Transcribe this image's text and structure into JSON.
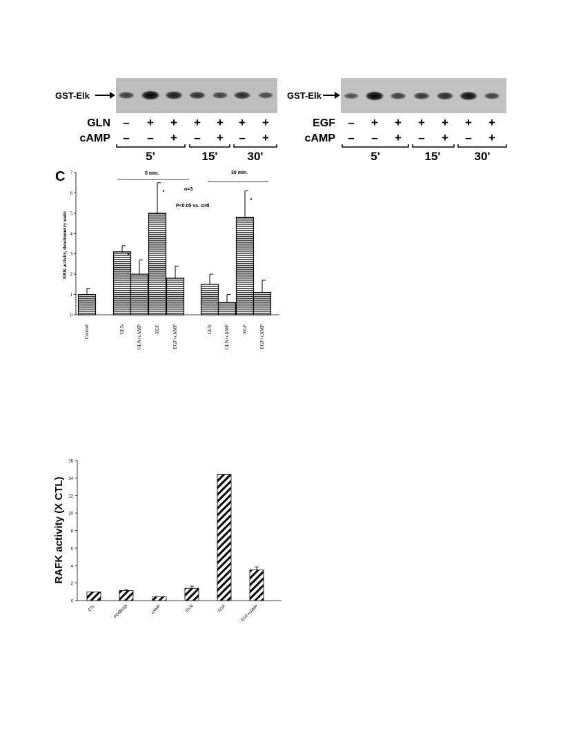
{
  "figure": {
    "blot_left": {
      "band_label": "GST-Elk",
      "rows": [
        {
          "label": "GLN",
          "signs": [
            "–",
            "+",
            "+",
            "+",
            "+",
            "+",
            "+"
          ]
        },
        {
          "label": "cAMP",
          "signs": [
            "–",
            "–",
            "+",
            "–",
            "+",
            "–",
            "+"
          ]
        }
      ],
      "times": [
        "5'",
        "15'",
        "30'"
      ],
      "band_intensity": [
        0.55,
        1.0,
        0.8,
        0.65,
        0.5,
        0.7,
        0.45
      ]
    },
    "blot_right": {
      "band_label": "GST-Elk",
      "rows": [
        {
          "label": "EGF",
          "signs": [
            "–",
            "+",
            "+",
            "+",
            "+",
            "+",
            "+"
          ]
        },
        {
          "label": "cAMP",
          "signs": [
            "–",
            "–",
            "+",
            "–",
            "+",
            "–",
            "+"
          ]
        }
      ],
      "times": [
        "5'",
        "15'",
        "30'"
      ],
      "band_intensity": [
        0.4,
        1.0,
        0.55,
        0.6,
        0.7,
        0.9,
        0.5
      ]
    },
    "panel_c_letter": "C",
    "panel_c_notes": {
      "n": "n=3",
      "p": "P<0.05 vs. cntl",
      "group1": "5 min.",
      "group2": "30 min."
    }
  },
  "chart_data": [
    {
      "type": "bar",
      "ylabel": "ERK activity, densitometry units",
      "ylim": [
        0,
        7
      ],
      "yticks": [
        "0",
        "1",
        "2",
        "3",
        "4",
        "5",
        "6",
        "7"
      ],
      "categories": [
        "Control",
        "GLN",
        "GLN+cAMP",
        "EGF",
        "EGF+cAMP",
        "GLN",
        "GLN+cAMP",
        "EGF",
        "EGF+cAMP"
      ],
      "values": [
        1.0,
        3.1,
        2.0,
        5.0,
        1.8,
        1.5,
        0.6,
        4.8,
        1.1
      ],
      "errors": [
        0.3,
        0.3,
        0.7,
        1.5,
        0.6,
        0.5,
        0.4,
        1.3,
        0.6
      ],
      "significant": [
        false,
        true,
        false,
        true,
        false,
        false,
        false,
        true,
        false
      ],
      "groups": [
        {
          "label": "5 min."
        },
        {
          "label": "30 min."
        }
      ]
    },
    {
      "type": "bar",
      "ylabel": "RAFK activity (X CTL)",
      "ylim": [
        0,
        16
      ],
      "yticks": [
        "0",
        "2",
        "4",
        "6",
        "8",
        "10",
        "12",
        "14",
        "16"
      ],
      "categories": [
        "CTL",
        "PD98059",
        "cAMP",
        "GLN",
        "EGF",
        "EGF+cAMP"
      ],
      "values": [
        1.0,
        1.15,
        0.45,
        1.4,
        14.4,
        3.5
      ],
      "errors": [
        0,
        0.1,
        0,
        0.25,
        0,
        0.35
      ]
    }
  ]
}
